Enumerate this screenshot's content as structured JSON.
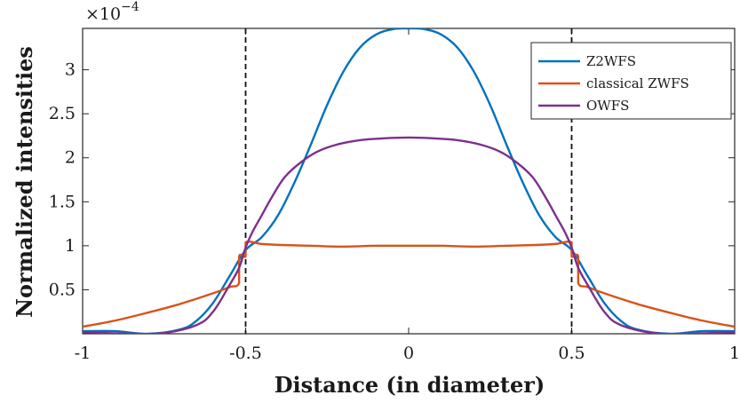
{
  "chart_data": {
    "type": "line",
    "title": "",
    "xlabel": "Distance (in diameter)",
    "ylabel": "Normalized intensities",
    "y_multiplier_base": "×10",
    "y_multiplier_exp": "−4",
    "xlim": [
      -1,
      1
    ],
    "ylim": [
      0,
      3.47
    ],
    "x_ticks": [
      -1,
      -0.5,
      0,
      0.5,
      1
    ],
    "x_tick_labels": [
      "-1",
      "-0.5",
      "0",
      "0.5",
      "1"
    ],
    "y_ticks": [
      0.5,
      1,
      1.5,
      2,
      2.5,
      3
    ],
    "y_tick_labels": [
      "0.5",
      "1",
      "1.5",
      "2",
      "2.5",
      "3"
    ],
    "legend_position": "top-right",
    "vlines": [
      -0.5,
      0.5
    ],
    "grid": false,
    "series": [
      {
        "name": "Z2WFS",
        "color": "#0072BD",
        "x": [
          -1,
          -0.9,
          -0.8,
          -0.7,
          -0.65,
          -0.6,
          -0.55,
          -0.5,
          -0.45,
          -0.4,
          -0.35,
          -0.3,
          -0.25,
          -0.2,
          -0.15,
          -0.1,
          -0.05,
          0,
          0.05,
          0.1,
          0.15,
          0.2,
          0.25,
          0.3,
          0.35,
          0.4,
          0.45,
          0.5,
          0.55,
          0.6,
          0.65,
          0.7,
          0.8,
          0.9,
          1
        ],
        "y": [
          0.03,
          0.03,
          0.0,
          0.05,
          0.15,
          0.35,
          0.65,
          0.95,
          1.1,
          1.35,
          1.72,
          2.15,
          2.6,
          2.98,
          3.25,
          3.4,
          3.46,
          3.47,
          3.46,
          3.4,
          3.25,
          2.98,
          2.6,
          2.15,
          1.72,
          1.35,
          1.1,
          0.95,
          0.65,
          0.35,
          0.15,
          0.05,
          0.0,
          0.03,
          0.03
        ]
      },
      {
        "name": "classical ZWFS",
        "color": "#D95319",
        "x": [
          -1,
          -0.9,
          -0.8,
          -0.7,
          -0.6,
          -0.55,
          -0.52,
          -0.52,
          -0.5,
          -0.5,
          -0.45,
          -0.4,
          -0.3,
          -0.2,
          -0.1,
          0,
          0.1,
          0.2,
          0.3,
          0.4,
          0.45,
          0.5,
          0.5,
          0.52,
          0.52,
          0.55,
          0.6,
          0.7,
          0.8,
          0.9,
          1
        ],
        "y": [
          0.08,
          0.15,
          0.24,
          0.34,
          0.46,
          0.53,
          0.58,
          0.88,
          0.88,
          1.04,
          1.02,
          1.01,
          1.0,
          0.99,
          1.0,
          1.0,
          1.0,
          0.99,
          1.0,
          1.01,
          1.02,
          1.04,
          0.88,
          0.88,
          0.58,
          0.53,
          0.46,
          0.34,
          0.24,
          0.15,
          0.08
        ]
      },
      {
        "name": "OWFS",
        "color": "#7E2F8E",
        "x": [
          -1,
          -0.85,
          -0.75,
          -0.65,
          -0.6,
          -0.55,
          -0.52,
          -0.5,
          -0.48,
          -0.45,
          -0.42,
          -0.38,
          -0.33,
          -0.28,
          -0.22,
          -0.15,
          -0.08,
          0,
          0.08,
          0.15,
          0.22,
          0.28,
          0.33,
          0.38,
          0.42,
          0.45,
          0.48,
          0.5,
          0.52,
          0.55,
          0.6,
          0.65,
          0.75,
          0.85,
          1
        ],
        "y": [
          0.02,
          0.0,
          0.01,
          0.1,
          0.25,
          0.55,
          0.75,
          0.98,
          1.15,
          1.35,
          1.55,
          1.78,
          1.95,
          2.07,
          2.15,
          2.2,
          2.22,
          2.23,
          2.22,
          2.2,
          2.15,
          2.07,
          1.95,
          1.78,
          1.55,
          1.35,
          1.15,
          0.98,
          0.75,
          0.55,
          0.25,
          0.1,
          0.01,
          0.0,
          0.02
        ]
      }
    ]
  }
}
